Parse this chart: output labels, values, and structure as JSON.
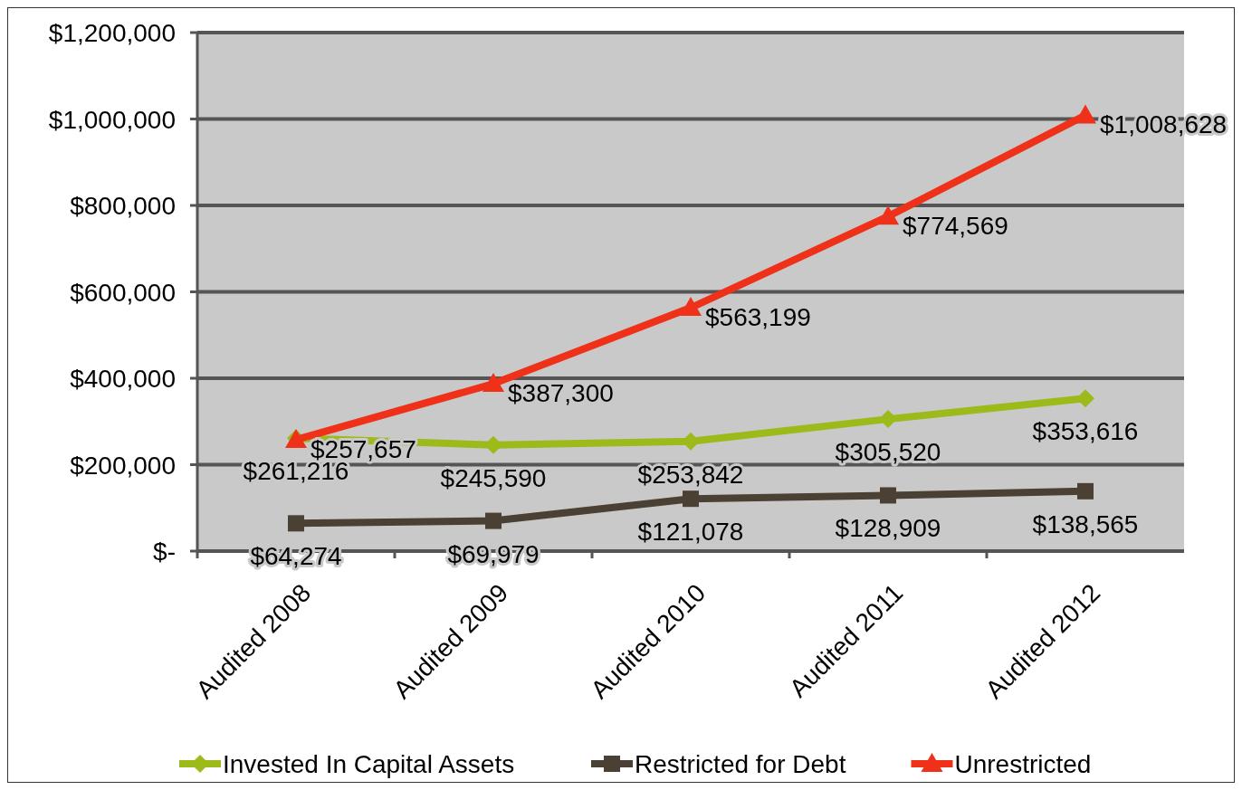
{
  "chart_data": {
    "type": "line",
    "categories": [
      "Audited 2008",
      "Audited 2009",
      "Audited 2010",
      "Audited 2011",
      "Audited 2012"
    ],
    "series": [
      {
        "name": "Invested In Capital Assets",
        "color": "#9cbb1a",
        "marker": "diamond",
        "values": [
          261216,
          245590,
          253842,
          305520,
          353616
        ],
        "value_labels": [
          "$261,216",
          "$245,590",
          "$253,842",
          "$305,520",
          "$353,616"
        ]
      },
      {
        "name": "Restricted for Debt",
        "color": "#4a4034",
        "marker": "square",
        "values": [
          64274,
          69979,
          121078,
          128909,
          138565
        ],
        "value_labels": [
          "$64,274",
          "$69,979",
          "$121,078",
          "$128,909",
          "$138,565"
        ]
      },
      {
        "name": "Unrestricted",
        "color": "#f0311a",
        "marker": "triangle",
        "values": [
          257657,
          387300,
          563199,
          774569,
          1008628
        ],
        "value_labels": [
          "$257,657",
          "$387,300",
          "$563,199",
          "$774,569",
          "$1,008,628"
        ]
      }
    ],
    "ylim": [
      0,
      1200000
    ],
    "yticks": [
      {
        "value": 0,
        "label": "$-"
      },
      {
        "value": 200000,
        "label": "$200,000"
      },
      {
        "value": 400000,
        "label": "$400,000"
      },
      {
        "value": 600000,
        "label": "$600,000"
      },
      {
        "value": 800000,
        "label": "$800,000"
      },
      {
        "value": 1000000,
        "label": "$1,000,000"
      },
      {
        "value": 1200000,
        "label": "$1,200,000"
      }
    ],
    "grid": "y",
    "legend": "bottom"
  }
}
